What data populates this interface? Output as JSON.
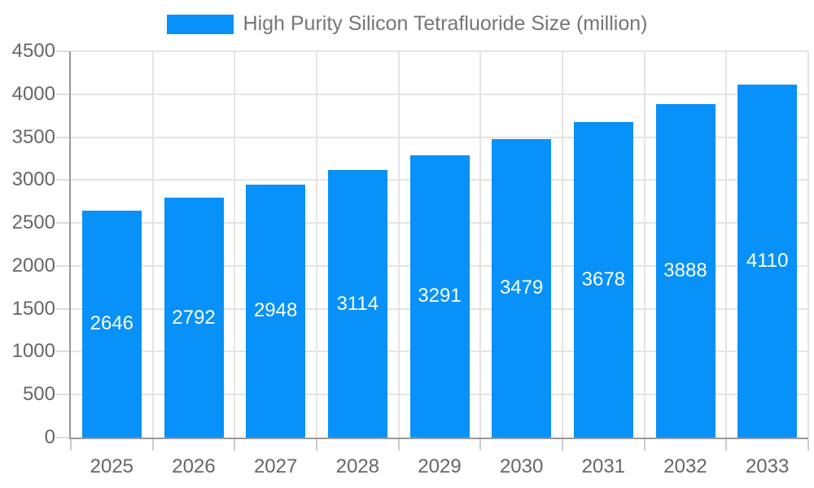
{
  "legend": {
    "items": [
      {
        "label": "High Purity Silicon Tetrafluoride Size (million)"
      }
    ]
  },
  "chart_data": {
    "type": "bar",
    "title": "High Purity Silicon Tetrafluoride Size (million)",
    "categories": [
      "2025",
      "2026",
      "2027",
      "2028",
      "2029",
      "2030",
      "2031",
      "2032",
      "2033"
    ],
    "values": [
      2646,
      2792,
      2948,
      3114,
      3291,
      3479,
      3678,
      3888,
      4110
    ],
    "xlabel": "",
    "ylabel": "",
    "ylim": [
      0,
      4500
    ],
    "ytick_interval": 500,
    "yticks": [
      "0",
      "500",
      "1000",
      "1500",
      "2000",
      "2500",
      "3000",
      "3500",
      "4000",
      "4500"
    ],
    "grid": true,
    "legend_position": "top",
    "bar_label_position": "inside-middle",
    "colors": {
      "bar": "#0891f8",
      "bar_label": "#ffffff",
      "axis_line": "#999999",
      "tick_y": "#dddddd",
      "tick_x": "#cccccc",
      "gridline": "#e4e4e4",
      "axis_label": "#666666",
      "legend_text": "#757575"
    }
  }
}
